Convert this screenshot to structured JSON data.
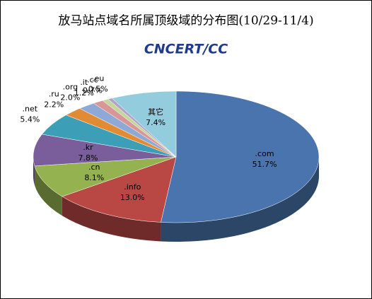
{
  "logo": "CNCERT/CC",
  "chart_data": {
    "type": "pie3d",
    "title": "放马站点域名所属顶级域的分布图(10/29-11/4)",
    "categories": [
      ".com",
      ".info",
      ".cn",
      ".kr",
      ".net",
      ".ru",
      ".org",
      ".it",
      ".cc",
      ".eu",
      "其它"
    ],
    "values": [
      51.7,
      13.0,
      8.1,
      7.8,
      5.4,
      2.2,
      2.0,
      1.2,
      0.7,
      0.5,
      7.4
    ],
    "value_labels": [
      "51.7%",
      "13.0%",
      "8.1%",
      "7.8%",
      "5.4%",
      "2.2%",
      "2.0%",
      "1.2%",
      "0.7%",
      "0.5%",
      "7.4%"
    ],
    "colors": [
      "#4a74ad",
      "#b94845",
      "#94b250",
      "#7a5e9b",
      "#3d9eb8",
      "#e18b35",
      "#8fa9d6",
      "#d89696",
      "#c3d69b",
      "#b2a2c7",
      "#93cddd"
    ]
  }
}
